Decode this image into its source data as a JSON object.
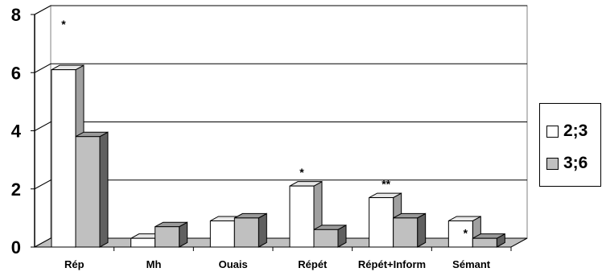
{
  "chart_data": {
    "type": "bar",
    "categories": [
      "Rép",
      "Mh",
      "Ouais",
      "Répét",
      "Répét+Inform",
      "Sémant"
    ],
    "series": [
      {
        "name": "2;3",
        "values": [
          6.1,
          0.3,
          0.9,
          2.1,
          1.7,
          0.9
        ],
        "color": "#ffffff"
      },
      {
        "name": "3;6",
        "values": [
          3.8,
          0.7,
          1.0,
          0.6,
          1.0,
          0.3
        ],
        "color": "#c0c0c0"
      }
    ],
    "ylim": [
      0,
      8
    ],
    "yticks": [
      "0",
      "2",
      "4",
      "6",
      "8"
    ],
    "annotations": [
      {
        "category": 0,
        "text": "*"
      },
      {
        "category": 3,
        "text": "*"
      },
      {
        "category": 4,
        "text": "**"
      },
      {
        "category": 5,
        "text": "*"
      }
    ],
    "grid": true,
    "legend_position": "right",
    "title": "",
    "xlabel": "",
    "ylabel": ""
  }
}
